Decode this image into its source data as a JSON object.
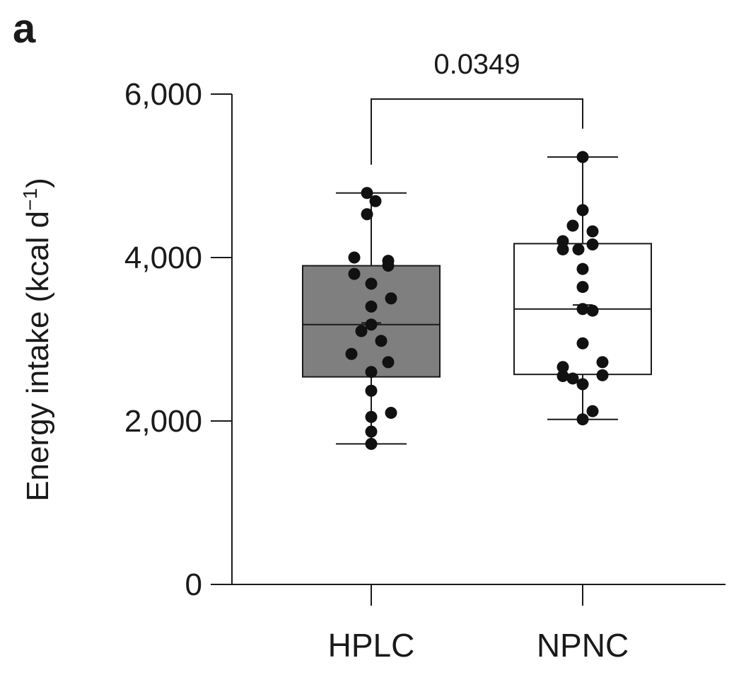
{
  "panel_label": "a",
  "chart_data": {
    "type": "box",
    "ylabel": "Energy intake (kcal d",
    "ylabel_superscript": "−1",
    "ylabel_close": ")",
    "ylim": [
      0,
      6000
    ],
    "yticks": [
      0,
      2000,
      4000,
      6000
    ],
    "ytick_labels": [
      "0",
      "2,000",
      "4,000",
      "6,000"
    ],
    "categories": [
      "HPLC",
      "NPNC"
    ],
    "groups": [
      {
        "name": "HPLC",
        "fill": "#7f7f7f",
        "whisker_low": 1720,
        "q1": 2540,
        "median": 3180,
        "mean": 3200,
        "q3": 3900,
        "whisker_high": 4790,
        "points": [
          4790,
          4690,
          4530,
          4000,
          3960,
          3800,
          3900,
          3680,
          3500,
          3400,
          3180,
          3100,
          2980,
          2820,
          2720,
          2600,
          2370,
          2100,
          2050,
          1870,
          1720
        ]
      },
      {
        "name": "NPNC",
        "fill": "#ffffff",
        "whisker_low": 2020,
        "q1": 2570,
        "median": 3370,
        "mean": 3420,
        "q3": 4170,
        "whisker_high": 5230,
        "points": [
          5230,
          4580,
          4390,
          4320,
          4200,
          4160,
          4100,
          4100,
          3860,
          3640,
          3370,
          3350,
          2950,
          2720,
          2660,
          2560,
          2550,
          2520,
          2450,
          2120,
          2020
        ]
      }
    ],
    "comparison": {
      "from": "HPLC",
      "to": "NPNC",
      "label": "0.0349"
    }
  }
}
